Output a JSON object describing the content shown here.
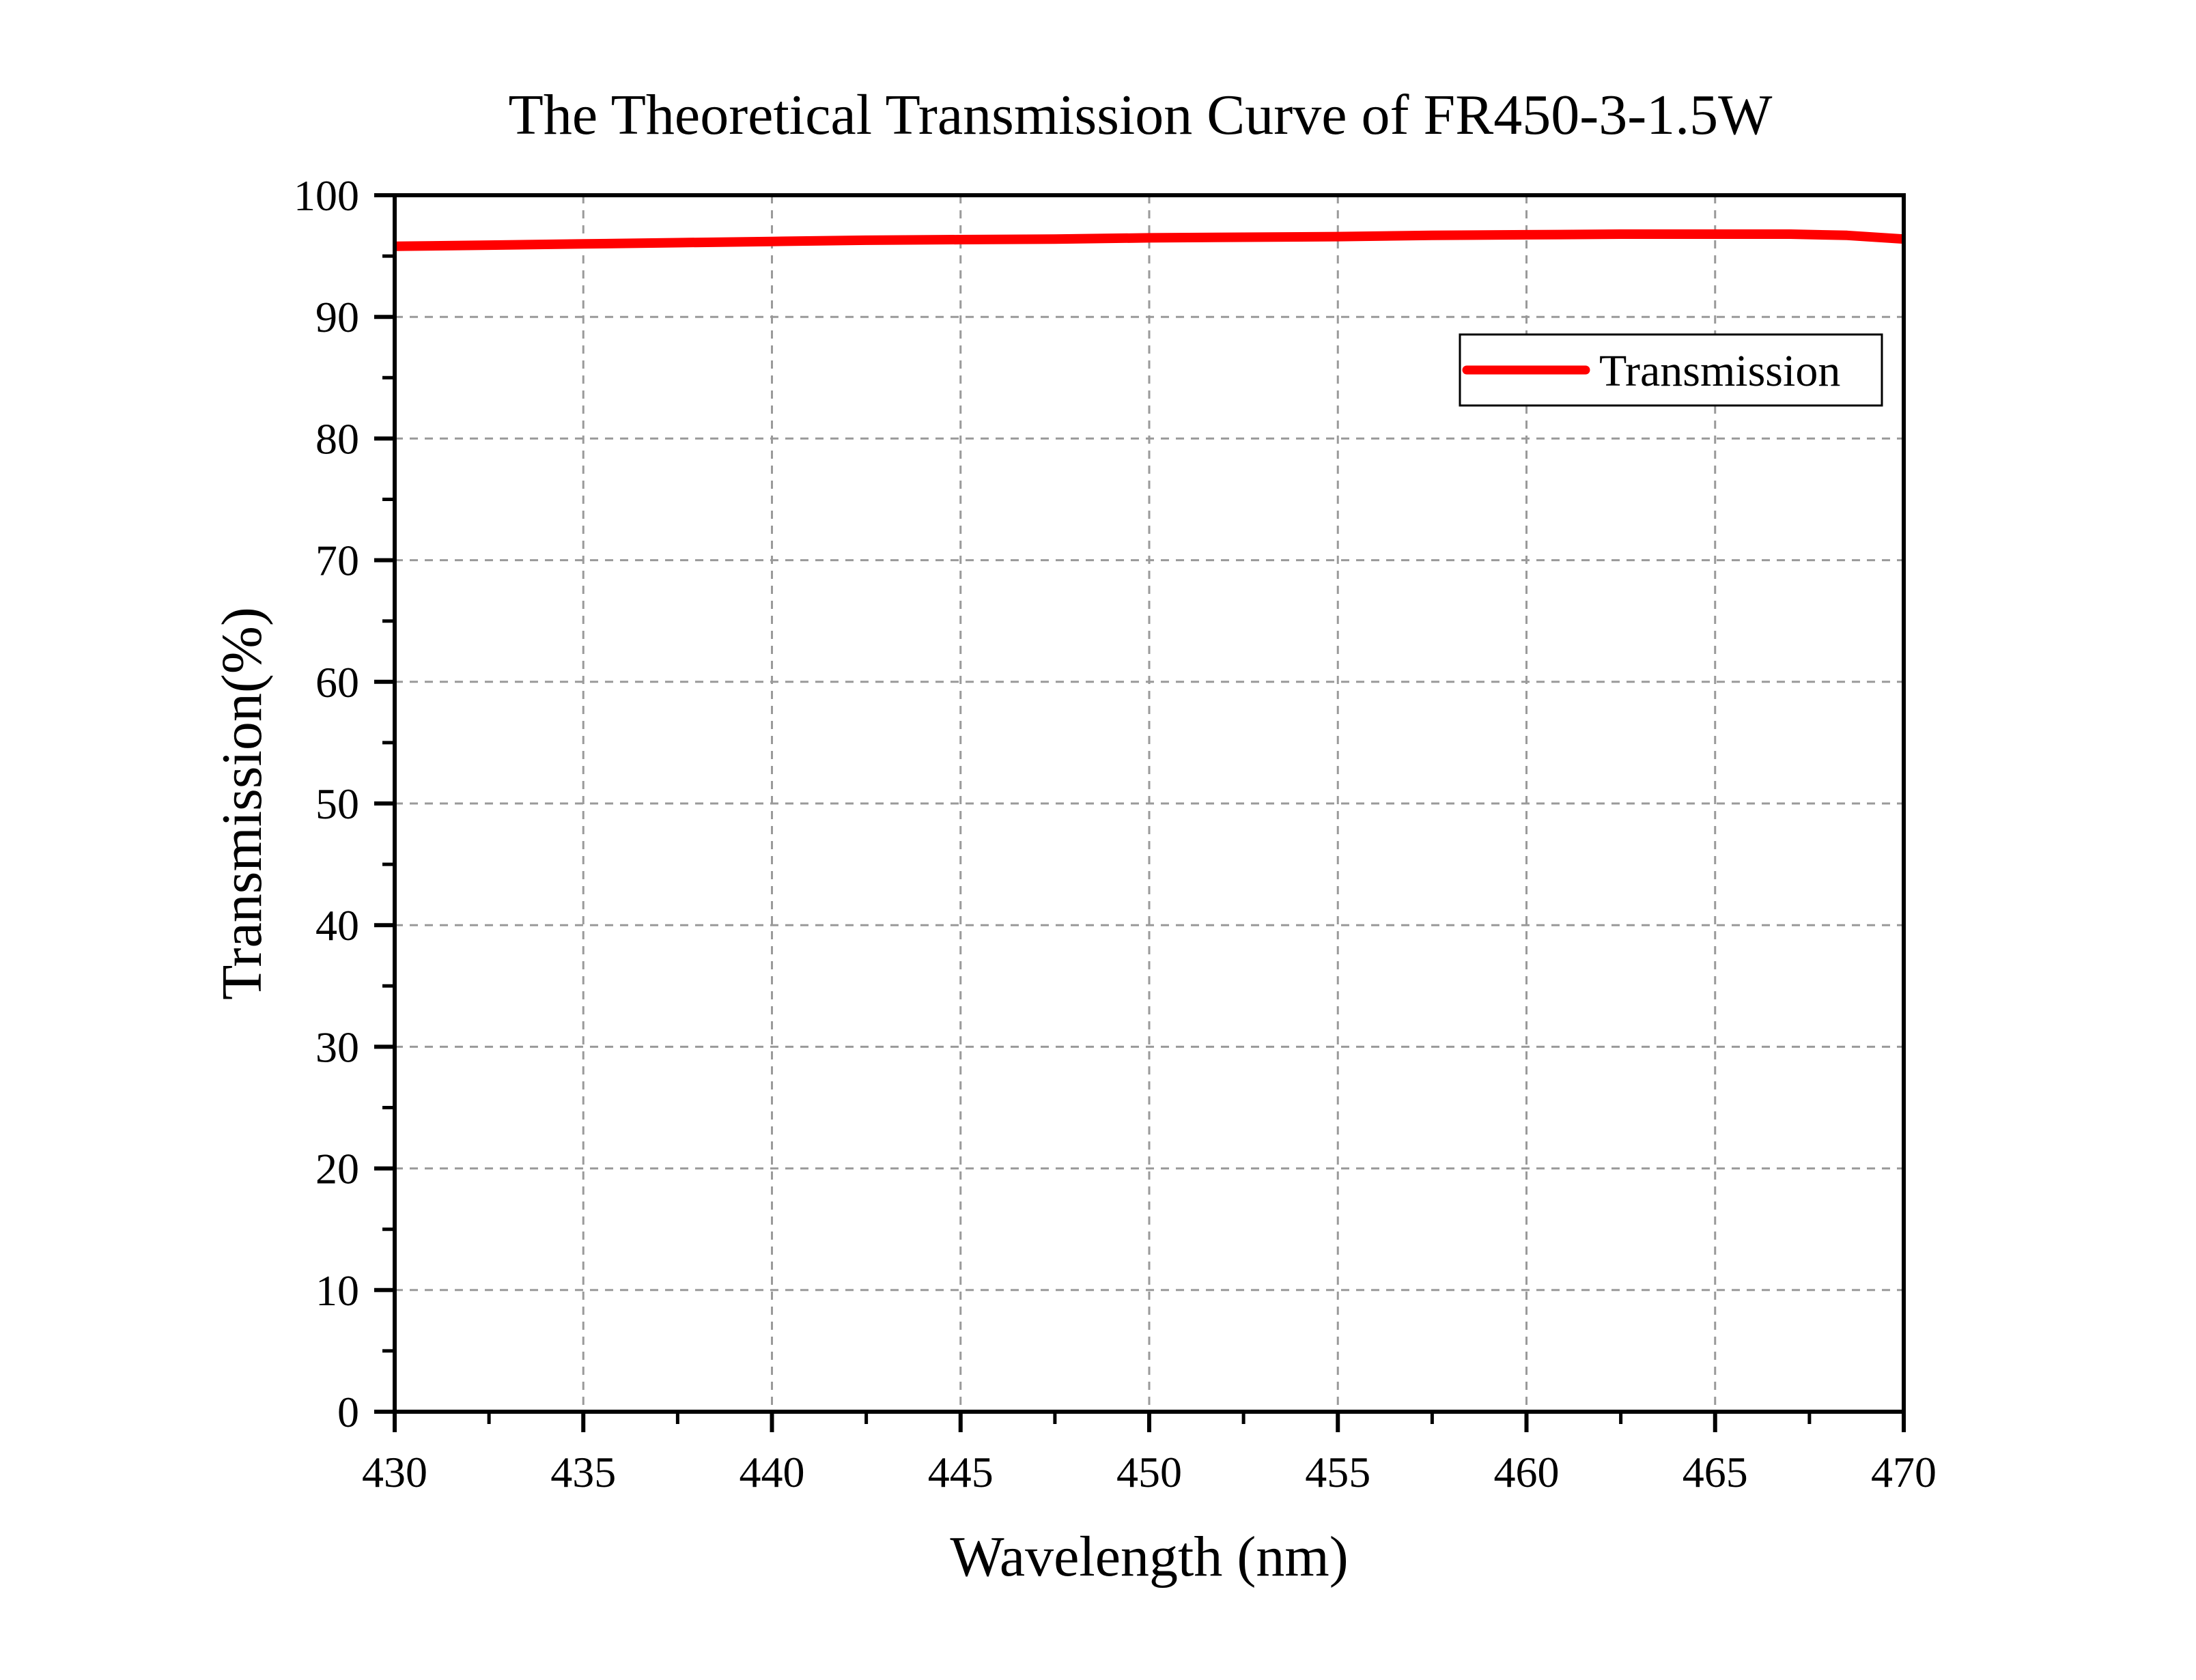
{
  "chart_data": {
    "type": "line",
    "title": "The Theoretical Transmission Curve of FR450-3-1.5W",
    "xlabel": "Wavelength (nm)",
    "ylabel": "Transmission(%)",
    "xlim": [
      430,
      470
    ],
    "ylim": [
      0,
      100
    ],
    "x_ticks": [
      "430",
      "435",
      "440",
      "445",
      "450",
      "455",
      "460",
      "465",
      "470"
    ],
    "y_ticks": [
      "0",
      "10",
      "20",
      "30",
      "40",
      "50",
      "60",
      "70",
      "80",
      "90",
      "100"
    ],
    "grid": true,
    "legend_position": "top-right",
    "series": [
      {
        "name": "Transmission",
        "color": "#ff0000",
        "x": [
          430,
          432.5,
          435,
          437.5,
          440,
          442.5,
          445,
          447.5,
          450,
          452.5,
          455,
          457.5,
          460,
          462.5,
          465,
          467,
          468.5,
          470
        ],
        "y": [
          95.8,
          95.9,
          96.0,
          96.1,
          96.2,
          96.3,
          96.35,
          96.4,
          96.5,
          96.55,
          96.6,
          96.7,
          96.75,
          96.8,
          96.8,
          96.8,
          96.7,
          96.4
        ]
      }
    ]
  }
}
